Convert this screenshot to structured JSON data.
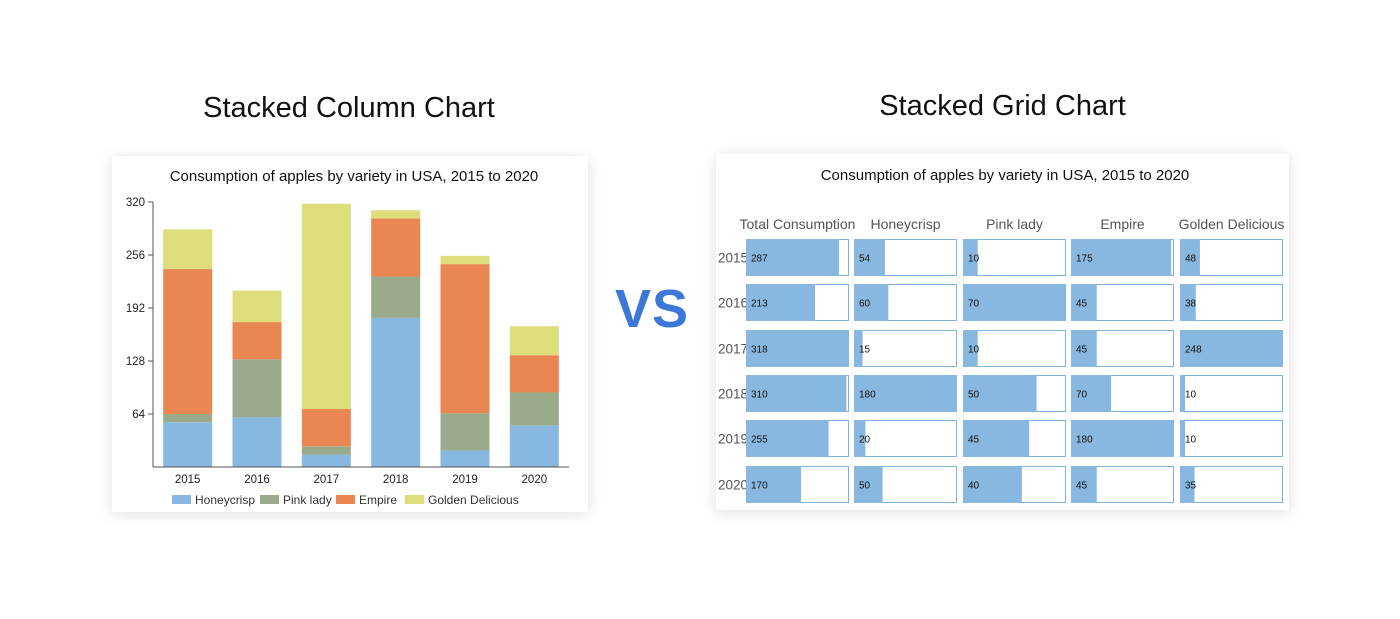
{
  "headings": {
    "left": "Stacked Column Chart",
    "right": "Stacked Grid Chart",
    "vs": "VS"
  },
  "colors": {
    "honeycrisp": "#88b8e0",
    "pink_lady": "#9aab8c",
    "empire": "#ea8651",
    "golden_delicious": "#dedd7b",
    "grid_fill": "#88b8e0",
    "grid_border": "#7fb3dc",
    "vs": "#3b78d8"
  },
  "chart_data": [
    {
      "type": "bar",
      "stacked": true,
      "title": "Consumption of apples by variety in USA, 2015 to 2020",
      "categories": [
        "2015",
        "2016",
        "2017",
        "2018",
        "2019",
        "2020"
      ],
      "series": [
        {
          "name": "Honeycrisp",
          "color": "#88b8e0",
          "values": [
            54,
            60,
            15,
            180,
            20,
            50
          ]
        },
        {
          "name": "Pink lady",
          "color": "#9aab8c",
          "values": [
            10,
            70,
            10,
            50,
            45,
            40
          ]
        },
        {
          "name": "Empire",
          "color": "#ea8651",
          "values": [
            175,
            45,
            45,
            70,
            180,
            45
          ]
        },
        {
          "name": "Golden Delicious",
          "color": "#dedd7b",
          "values": [
            48,
            38,
            248,
            10,
            10,
            35
          ]
        }
      ],
      "yticks": [
        "64",
        "128",
        "192",
        "256",
        "320"
      ],
      "ylim": [
        0,
        320
      ],
      "grid": false,
      "legend": "bottom"
    },
    {
      "type": "table",
      "title": "Consumption of apples by variety in USA, 2015 to 2020",
      "columns": [
        "Total Consumption",
        "Honeycrisp",
        "Pink lady",
        "Empire",
        "Golden Delicious"
      ],
      "rows": [
        "2015",
        "2016",
        "2017",
        "2018",
        "2019",
        "2020"
      ],
      "column_max": [
        318,
        180,
        70,
        180,
        248
      ],
      "values": [
        [
          287,
          54,
          10,
          175,
          48
        ],
        [
          213,
          60,
          70,
          45,
          38
        ],
        [
          318,
          15,
          10,
          45,
          248
        ],
        [
          310,
          180,
          50,
          70,
          10
        ],
        [
          255,
          20,
          45,
          180,
          10
        ],
        [
          170,
          50,
          40,
          45,
          35
        ]
      ]
    }
  ]
}
